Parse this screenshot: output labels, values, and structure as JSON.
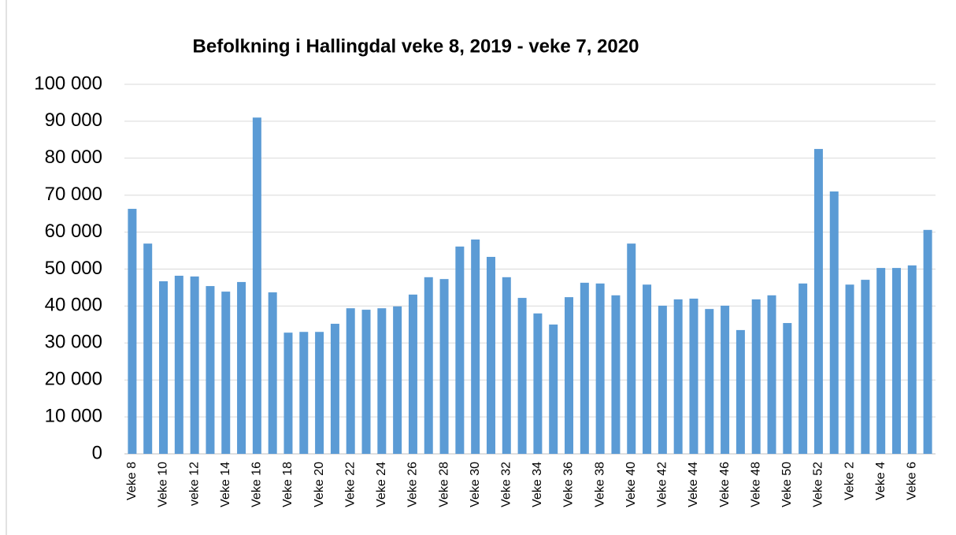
{
  "chart_data": {
    "type": "bar",
    "title": "Befolkning i Hallingdal veke 8, 2019 - veke 7, 2020",
    "categories": [
      "Veke 8",
      null,
      "Veke 10",
      null,
      "veke 12",
      null,
      "Veke 14",
      null,
      "Veke 16",
      null,
      "Veke 18",
      null,
      "Veke 20",
      null,
      "Veke 22",
      null,
      "Veke 24",
      null,
      "Veke 26",
      null,
      "Veke 28",
      null,
      "Veke 30",
      null,
      "Veke 32",
      null,
      "Veke 34",
      null,
      "Veke 36",
      null,
      "Veke 38",
      null,
      "Veke 40",
      null,
      "Veke 42",
      null,
      "Veke 44",
      null,
      "Veke 46",
      null,
      "Veke 48",
      null,
      "Veke 50",
      null,
      "Veke 52",
      null,
      "Veke 2",
      null,
      "Veke 4",
      null,
      "Veke 6",
      null
    ],
    "values": [
      66300,
      56900,
      46700,
      48200,
      48000,
      45400,
      43900,
      46500,
      91000,
      43700,
      32800,
      33000,
      33000,
      35200,
      39400,
      39000,
      39400,
      39900,
      43100,
      47800,
      47300,
      56100,
      58000,
      53300,
      47800,
      42200,
      38000,
      35000,
      42400,
      46300,
      46100,
      42900,
      56900,
      45800,
      40100,
      41800,
      42000,
      39200,
      40100,
      33500,
      41800,
      42900,
      35400,
      46100,
      82500,
      71000,
      45800,
      47100,
      50300,
      50300,
      51000,
      60600
    ],
    "color": "#5b9bd5",
    "ylim": [
      0,
      100000
    ],
    "yticks": [
      0,
      {
        "value": 10000,
        "label": "10 000"
      },
      {
        "value": 20000,
        "label": "20 000"
      },
      {
        "value": 30000,
        "label": "30 000"
      },
      {
        "value": 40000,
        "label": "40 000"
      },
      {
        "value": 50000,
        "label": "50 000"
      },
      {
        "value": 60000,
        "label": "60 000"
      },
      {
        "value": 70000,
        "label": "70 000"
      },
      {
        "value": 80000,
        "label": "80 000"
      },
      {
        "value": 90000,
        "label": "90 000"
      },
      {
        "value": 100000,
        "label": "100 000"
      }
    ],
    "grid": true
  }
}
